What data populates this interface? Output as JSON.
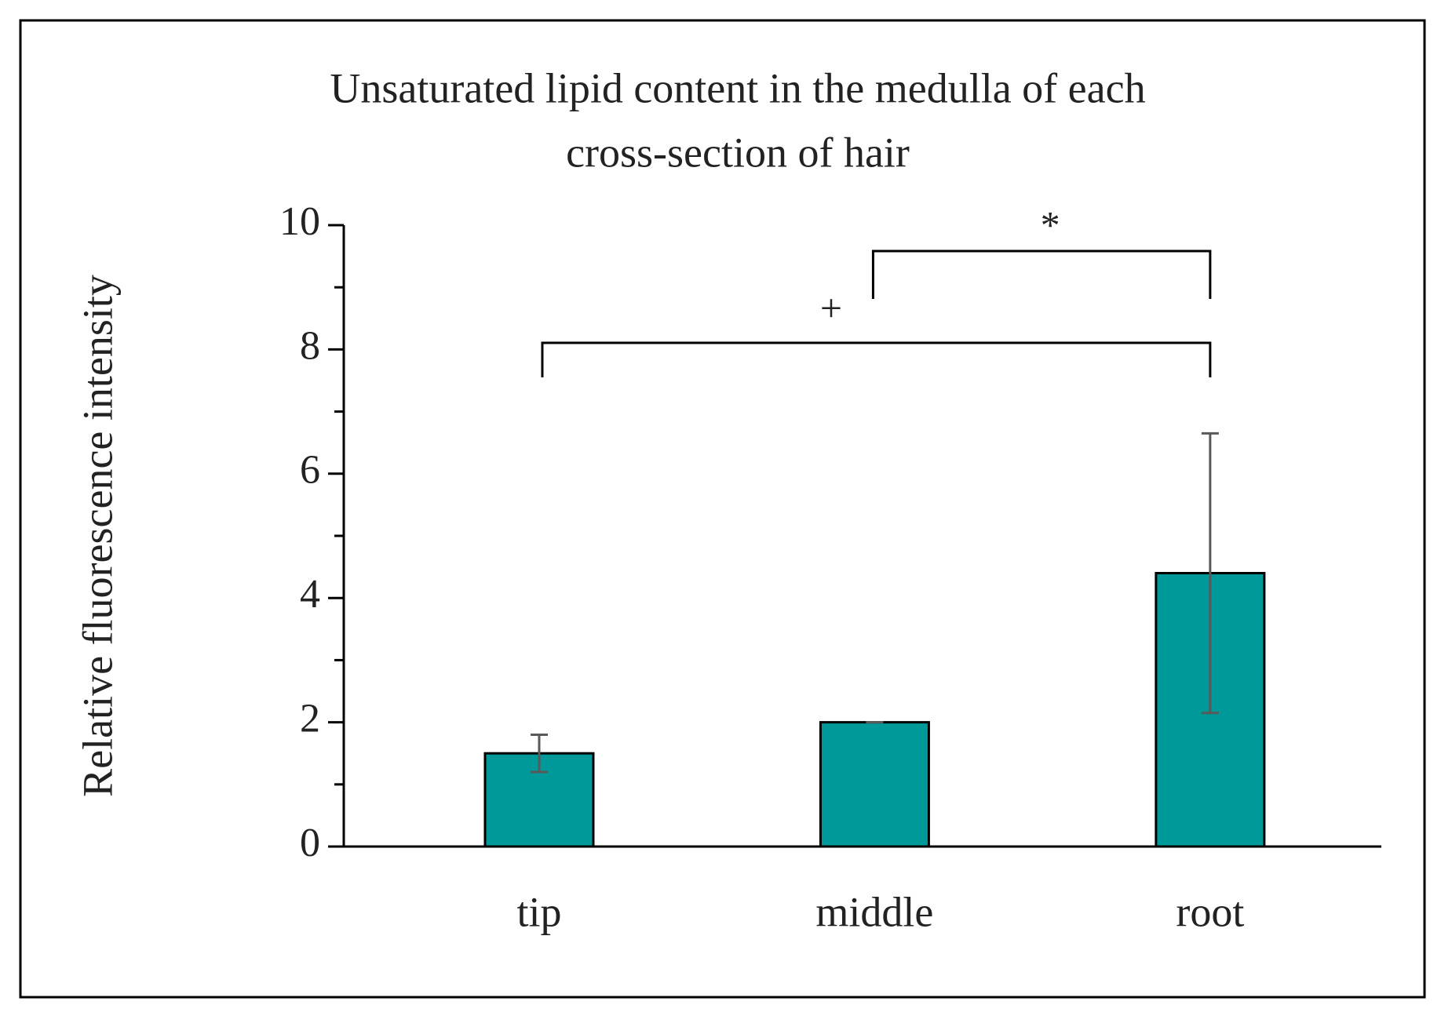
{
  "chart_data": {
    "type": "bar",
    "title": [
      "Unsaturated lipid  content in the medulla of each",
      "cross-section of hair"
    ],
    "y_label": "Relative fluorescence intensity",
    "categories": [
      "tip",
      "middle",
      "root"
    ],
    "values": [
      1.5,
      2.0,
      4.4
    ],
    "errors": [
      0.3,
      0.0,
      2.25
    ],
    "color": "#009999",
    "ylim": [
      0,
      10
    ],
    "yticks": [
      0,
      2,
      4,
      6,
      8,
      10
    ],
    "minor_yticks": [
      1,
      3,
      5,
      7,
      9
    ],
    "annotations": [
      "*",
      "+"
    ]
  }
}
